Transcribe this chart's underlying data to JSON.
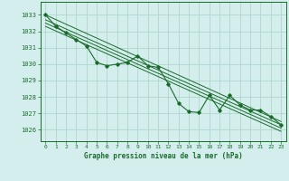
{
  "background_color": "#d4eeee",
  "grid_color": "#b0d8cc",
  "line_color": "#1a6b2a",
  "text_color": "#1a6b2a",
  "xlabel": "Graphe pression niveau de la mer (hPa)",
  "xlim": [
    -0.5,
    23.5
  ],
  "ylim": [
    1025.3,
    1033.8
  ],
  "yticks": [
    1026,
    1027,
    1028,
    1029,
    1030,
    1031,
    1032,
    1033
  ],
  "xticks": [
    0,
    1,
    2,
    3,
    4,
    5,
    6,
    7,
    8,
    9,
    10,
    11,
    12,
    13,
    14,
    15,
    16,
    17,
    18,
    19,
    20,
    21,
    22,
    23
  ],
  "main_x": [
    0,
    1,
    2,
    3,
    4,
    5,
    6,
    7,
    8,
    9,
    10,
    11,
    12,
    13,
    14,
    15,
    16,
    17,
    18,
    19,
    20,
    21,
    22,
    23
  ],
  "main_y": [
    1033.0,
    1032.3,
    1031.9,
    1031.5,
    1031.1,
    1030.1,
    1029.9,
    1030.0,
    1030.1,
    1030.5,
    1029.9,
    1029.8,
    1028.8,
    1027.6,
    1027.1,
    1027.05,
    1028.1,
    1027.2,
    1028.1,
    1027.5,
    1027.2,
    1027.2,
    1026.8,
    1026.3
  ],
  "trend1_x": [
    0,
    23
  ],
  "trend1_y": [
    1033.0,
    1026.5
  ],
  "trend2_x": [
    0,
    23
  ],
  "trend2_y": [
    1032.7,
    1026.3
  ],
  "trend3_x": [
    0,
    23
  ],
  "trend3_y": [
    1032.5,
    1026.1
  ],
  "trend4_x": [
    0,
    23
  ],
  "trend4_y": [
    1032.3,
    1025.9
  ]
}
